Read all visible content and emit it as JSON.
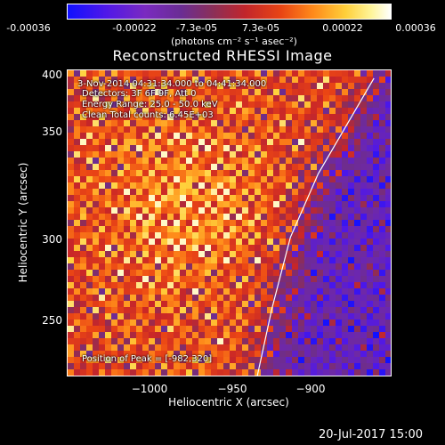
{
  "colorbar": {
    "ticks": [
      "-0.00036",
      "-0.00022",
      "-7.3e-05",
      "7.3e-05",
      "0.00022",
      "0.00036"
    ],
    "unit_label": "(photons cm⁻² s⁻¹ asec⁻²)",
    "colors": [
      "#1010ff",
      "#7a2ac0",
      "#8b2f58",
      "#c2262b",
      "#ff8a1a",
      "#ffcf3a",
      "#ffffff"
    ]
  },
  "chart_data": {
    "type": "heatmap",
    "title": "Reconstructed RHESSI Image",
    "xlabel": "Heliocentric X (arcsec)",
    "ylabel": "Heliocentric Y (arcsec)",
    "xlim": [
      -1045,
      -870
    ],
    "ylim": [
      212,
      405
    ],
    "x_ticks": [
      -1000,
      -950,
      -900
    ],
    "y_ticks": [
      250,
      300,
      350,
      400
    ],
    "color_scale": [
      -0.00036,
      0.00036
    ],
    "peak_position": [
      -982,
      320
    ],
    "limb_curve": [
      {
        "x": -943,
        "y": 212
      },
      {
        "x": -935,
        "y": 255
      },
      {
        "x": -925,
        "y": 300
      },
      {
        "x": -910,
        "y": 340
      },
      {
        "x": -895,
        "y": 370
      },
      {
        "x": -880,
        "y": 400
      }
    ],
    "annotations": [
      "3-Nov-2014 04:31:34.000 to 04:41:34.000",
      "Detectors: 3F 6F 9F, Att 0",
      "Energy Range: 25.0 - 50.0 keV",
      "Clean     Total counts: 6.45E+03",
      "Position of Peak = [-982,320]"
    ]
  },
  "date_stamp": "20-Jul-2017 15:00"
}
